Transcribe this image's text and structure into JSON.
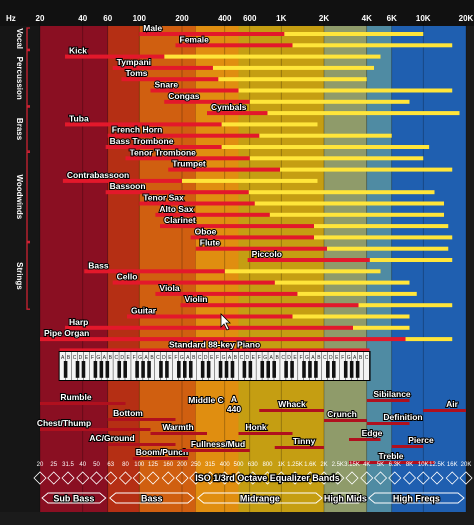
{
  "chart_data": {
    "type": "bar",
    "title": "",
    "xlabel": "Hz",
    "x_scale": "log",
    "xlim": [
      20,
      20000
    ],
    "top_ticks": [
      "20",
      "40",
      "60",
      "100",
      "200",
      "400",
      "600",
      "1K",
      "2K",
      "4K",
      "6K",
      "10K",
      "20K"
    ],
    "top_tick_values": [
      20,
      40,
      60,
      100,
      200,
      400,
      600,
      1000,
      2000,
      4000,
      6000,
      10000,
      20000
    ],
    "region_colors": [
      "#8a0f22",
      "#b52f14",
      "#d05f10",
      "#e08e10",
      "#c59e12",
      "#8f9b6a",
      "#4f8ba3",
      "#1f5fb0"
    ],
    "region_bounds_hz": [
      20,
      60,
      100,
      250,
      500,
      2000,
      4000,
      6000,
      20000
    ],
    "fundamental_color": "#e3182b",
    "harmonic_color": "#ffe53a",
    "groups": [
      {
        "label": "Vocal",
        "first": 0,
        "last": 1
      },
      {
        "label": "Percussion",
        "first": 2,
        "last": 6
      },
      {
        "label": "Brass",
        "first": 7,
        "last": 10
      },
      {
        "label": "Woodwinds",
        "first": 11,
        "last": 18
      },
      {
        "label": "Strings",
        "first": 19,
        "last": 24
      }
    ],
    "instruments": [
      {
        "name": "Male",
        "fund": [
          100,
          1050
        ],
        "harm": [
          1050,
          10000
        ]
      },
      {
        "name": "Female",
        "fund": [
          180,
          1200
        ],
        "harm": [
          1200,
          16000
        ]
      },
      {
        "name": "Kick",
        "fund": [
          30,
          150
        ],
        "harm": [
          150,
          5000
        ]
      },
      {
        "name": "Tympani",
        "fund": [
          65,
          330
        ],
        "harm": [
          330,
          4500
        ]
      },
      {
        "name": "Toms",
        "fund": [
          75,
          360
        ],
        "harm": [
          360,
          4000
        ]
      },
      {
        "name": "Snare",
        "fund": [
          120,
          500
        ],
        "harm": [
          500,
          16000
        ]
      },
      {
        "name": "Congas",
        "fund": [
          150,
          600
        ],
        "harm": [
          600,
          8000
        ]
      },
      {
        "name": "Cymbals",
        "fund": [
          300,
          800
        ],
        "harm": [
          800,
          18000
        ]
      },
      {
        "name": "Tuba",
        "fund": [
          30,
          380
        ],
        "harm": [
          380,
          1800
        ]
      },
      {
        "name": "French Horn",
        "fund": [
          60,
          700
        ],
        "harm": [
          700,
          6000
        ]
      },
      {
        "name": "Bass Trombone",
        "fund": [
          58,
          380
        ],
        "harm": [
          380,
          11000
        ]
      },
      {
        "name": "Tenor Trombone",
        "fund": [
          80,
          600
        ],
        "harm": [
          600,
          10000
        ]
      },
      {
        "name": "Trumpet",
        "fund": [
          160,
          980
        ],
        "harm": [
          980,
          16000
        ]
      },
      {
        "name": "Contrabassoon",
        "fund": [
          29,
          200
        ],
        "harm": [
          200,
          1800
        ]
      },
      {
        "name": "Bassoon",
        "fund": [
          58,
          590
        ],
        "harm": [
          590,
          12000
        ]
      },
      {
        "name": "Tenor Sax",
        "fund": [
          100,
          650
        ],
        "harm": [
          650,
          14000
        ]
      },
      {
        "name": "Alto Sax",
        "fund": [
          130,
          830
        ],
        "harm": [
          830,
          14000
        ]
      },
      {
        "name": "Clarinet",
        "fund": [
          140,
          1700
        ],
        "harm": [
          1700,
          15000
        ]
      },
      {
        "name": "Oboe",
        "fund": [
          230,
          1700
        ],
        "harm": [
          1700,
          16000
        ]
      },
      {
        "name": "Flute",
        "fund": [
          250,
          2100
        ],
        "harm": [
          2100,
          15000
        ]
      },
      {
        "name": "Piccolo",
        "fund": [
          580,
          4200
        ],
        "harm": [
          4200,
          16000
        ]
      },
      {
        "name": "Bass",
        "fund": [
          41,
          400
        ],
        "harm": [
          400,
          5000
        ]
      },
      {
        "name": "Cello",
        "fund": [
          65,
          900
        ],
        "harm": [
          900,
          8000
        ]
      },
      {
        "name": "Viola",
        "fund": [
          130,
          1300
        ],
        "harm": [
          1300,
          9000
        ]
      },
      {
        "name": "Violin",
        "fund": [
          195,
          3500
        ],
        "harm": [
          3500,
          16000
        ]
      },
      {
        "name": "Guitar",
        "fund": [
          82,
          1200
        ],
        "harm": [
          1200,
          8000
        ]
      },
      {
        "name": "Harp",
        "fund": [
          30,
          3200
        ],
        "harm": [
          3200,
          8000
        ]
      },
      {
        "name": "Pipe Organ",
        "fund": [
          20,
          7500
        ],
        "harm": [
          7500,
          16000
        ]
      },
      {
        "name": "Standard 88-key Piano",
        "fund": [
          27.5,
          4186
        ],
        "harm": [
          4186,
          4186
        ]
      }
    ],
    "piano_label": "Standard 88-key Piano",
    "piano_note_letters": [
      "C",
      "D",
      "E",
      "F",
      "G",
      "A",
      "B"
    ],
    "descriptors": [
      {
        "text": "Rumble",
        "range": [
          20,
          80
        ]
      },
      {
        "text": "Chest/Thump",
        "range": [
          20,
          120
        ]
      },
      {
        "text": "Bottom",
        "range": [
          60,
          180
        ]
      },
      {
        "text": "AC/Ground",
        "range": [
          60,
          180
        ]
      },
      {
        "text": "Warmth",
        "range": [
          120,
          300
        ]
      },
      {
        "text": "Boom/Punch",
        "range": [
          90,
          220
        ]
      },
      {
        "text": "Middle C",
        "range": [
          260,
          262
        ]
      },
      {
        "text": "A",
        "range": [
          440,
          440
        ]
      },
      {
        "text": "440",
        "range": [
          440,
          440
        ]
      },
      {
        "text": "Fullness/Mud",
        "range": [
          200,
          600
        ]
      },
      {
        "text": "Honk",
        "range": [
          500,
          1200
        ]
      },
      {
        "text": "Whack",
        "range": [
          700,
          2000
        ]
      },
      {
        "text": "Tinny",
        "range": [
          900,
          2000
        ]
      },
      {
        "text": "Crunch",
        "range": [
          2000,
          4000
        ]
      },
      {
        "text": "Sibilance",
        "range": [
          4000,
          8000
        ]
      },
      {
        "text": "Definition",
        "range": [
          4000,
          8000
        ]
      },
      {
        "text": "Edge",
        "range": [
          3000,
          5000
        ]
      },
      {
        "text": "Air",
        "range": [
          10000,
          20000
        ]
      },
      {
        "text": "Pierce",
        "range": [
          6000,
          10000
        ]
      },
      {
        "text": "Treble",
        "range": [
          3000,
          12000
        ]
      }
    ],
    "eq_title": "ISO 1/3rd Octave Equalizer Bands",
    "eq_bands": [
      "20",
      "25",
      "31.5",
      "40",
      "50",
      "63",
      "80",
      "100",
      "125",
      "160",
      "200",
      "250",
      "315",
      "400",
      "500",
      "630",
      "800",
      "1K",
      "1.25K",
      "1.6K",
      "2K",
      "2.5K",
      "3.15K",
      "4K",
      "5K",
      "6.3K",
      "8K",
      "10K",
      "12.5K",
      "16K",
      "20K"
    ],
    "eq_band_values": [
      20,
      25,
      31.5,
      40,
      50,
      63,
      80,
      100,
      125,
      160,
      200,
      250,
      315,
      400,
      500,
      630,
      800,
      1000,
      1250,
      1600,
      2000,
      2500,
      3150,
      4000,
      5000,
      6300,
      8000,
      10000,
      12500,
      16000,
      20000
    ],
    "ranges": [
      {
        "label": "Sub Bass",
        "from": 20,
        "to": 60
      },
      {
        "label": "Bass",
        "from": 60,
        "to": 250
      },
      {
        "label": "Midrange",
        "from": 250,
        "to": 2000
      },
      {
        "label": "High Mids",
        "from": 2000,
        "to": 4000
      },
      {
        "label": "High Freqs",
        "from": 4000,
        "to": 20000
      }
    ]
  }
}
